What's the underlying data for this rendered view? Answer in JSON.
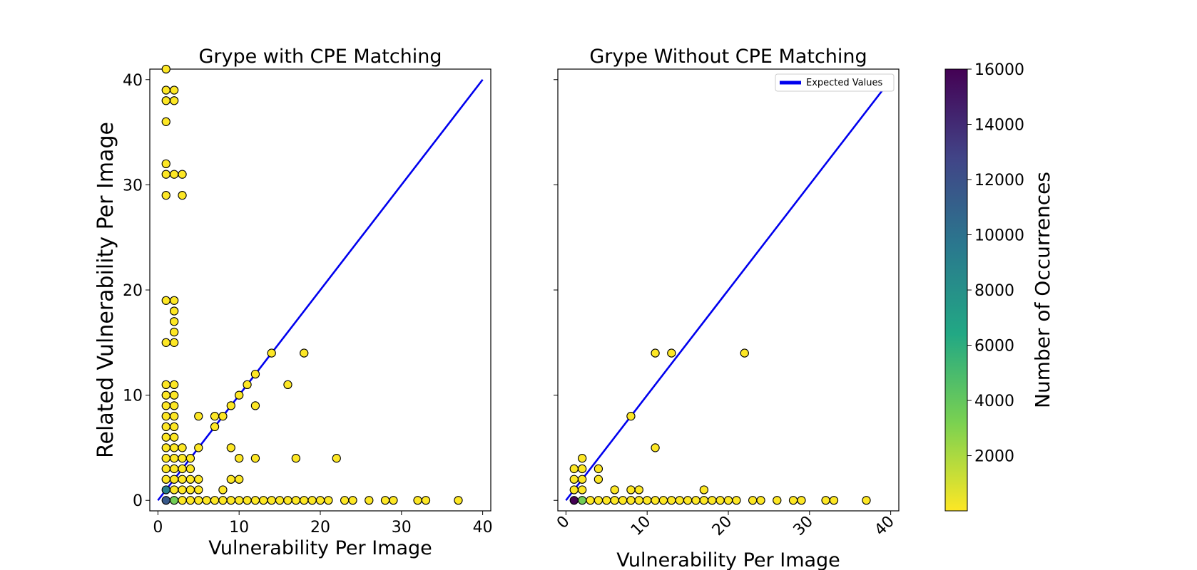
{
  "chart_data": [
    {
      "type": "scatter",
      "title": "Grype with CPE Matching",
      "xlabel": "Vulnerability Per Image",
      "ylabel": "Related Vulnerability Per Image",
      "xlim": [
        -1,
        41
      ],
      "ylim": [
        -1,
        41
      ],
      "xticks": [
        0,
        10,
        20,
        30,
        40
      ],
      "yticks": [
        0,
        10,
        20,
        30,
        40
      ],
      "reference_line": {
        "from": [
          0,
          0
        ],
        "to": [
          40,
          40
        ],
        "color": "#0000ee"
      },
      "points": [
        {
          "x": 1,
          "y": 41
        },
        {
          "x": 1,
          "y": 39
        },
        {
          "x": 2,
          "y": 39
        },
        {
          "x": 1,
          "y": 38
        },
        {
          "x": 2,
          "y": 38
        },
        {
          "x": 1,
          "y": 36
        },
        {
          "x": 1,
          "y": 32
        },
        {
          "x": 1,
          "y": 31
        },
        {
          "x": 2,
          "y": 31
        },
        {
          "x": 3,
          "y": 31
        },
        {
          "x": 1,
          "y": 29
        },
        {
          "x": 3,
          "y": 29
        },
        {
          "x": 1,
          "y": 19
        },
        {
          "x": 2,
          "y": 19
        },
        {
          "x": 2,
          "y": 18
        },
        {
          "x": 2,
          "y": 17
        },
        {
          "x": 2,
          "y": 16
        },
        {
          "x": 1,
          "y": 15
        },
        {
          "x": 2,
          "y": 15
        },
        {
          "x": 14,
          "y": 14
        },
        {
          "x": 18,
          "y": 14
        },
        {
          "x": 12,
          "y": 12
        },
        {
          "x": 1,
          "y": 11
        },
        {
          "x": 2,
          "y": 11
        },
        {
          "x": 11,
          "y": 11
        },
        {
          "x": 16,
          "y": 11
        },
        {
          "x": 1,
          "y": 10
        },
        {
          "x": 2,
          "y": 10
        },
        {
          "x": 10,
          "y": 10
        },
        {
          "x": 1,
          "y": 9
        },
        {
          "x": 2,
          "y": 9
        },
        {
          "x": 9,
          "y": 9
        },
        {
          "x": 12,
          "y": 9
        },
        {
          "x": 1,
          "y": 8
        },
        {
          "x": 2,
          "y": 8
        },
        {
          "x": 5,
          "y": 8
        },
        {
          "x": 7,
          "y": 8
        },
        {
          "x": 8,
          "y": 8
        },
        {
          "x": 1,
          "y": 7
        },
        {
          "x": 2,
          "y": 7
        },
        {
          "x": 7,
          "y": 7
        },
        {
          "x": 1,
          "y": 6
        },
        {
          "x": 2,
          "y": 6
        },
        {
          "x": 1,
          "y": 5
        },
        {
          "x": 2,
          "y": 5
        },
        {
          "x": 3,
          "y": 5
        },
        {
          "x": 5,
          "y": 5
        },
        {
          "x": 9,
          "y": 5
        },
        {
          "x": 1,
          "y": 4
        },
        {
          "x": 2,
          "y": 4
        },
        {
          "x": 3,
          "y": 4
        },
        {
          "x": 4,
          "y": 4
        },
        {
          "x": 10,
          "y": 4
        },
        {
          "x": 12,
          "y": 4
        },
        {
          "x": 17,
          "y": 4
        },
        {
          "x": 22,
          "y": 4
        },
        {
          "x": 1,
          "y": 3
        },
        {
          "x": 2,
          "y": 3
        },
        {
          "x": 3,
          "y": 3
        },
        {
          "x": 4,
          "y": 3
        },
        {
          "x": 1,
          "y": 2
        },
        {
          "x": 2,
          "y": 2
        },
        {
          "x": 3,
          "y": 2
        },
        {
          "x": 4,
          "y": 2
        },
        {
          "x": 5,
          "y": 2
        },
        {
          "x": 9,
          "y": 2
        },
        {
          "x": 10,
          "y": 2
        },
        {
          "x": 1,
          "y": 1,
          "count": 9000
        },
        {
          "x": 2,
          "y": 1
        },
        {
          "x": 3,
          "y": 1
        },
        {
          "x": 4,
          "y": 1
        },
        {
          "x": 5,
          "y": 1
        },
        {
          "x": 8,
          "y": 1
        },
        {
          "x": 1,
          "y": 0,
          "count": 11500
        },
        {
          "x": 2,
          "y": 0,
          "count": 3500
        },
        {
          "x": 3,
          "y": 0
        },
        {
          "x": 4,
          "y": 0
        },
        {
          "x": 5,
          "y": 0
        },
        {
          "x": 6,
          "y": 0
        },
        {
          "x": 7,
          "y": 0
        },
        {
          "x": 8,
          "y": 0
        },
        {
          "x": 9,
          "y": 0
        },
        {
          "x": 10,
          "y": 0
        },
        {
          "x": 11,
          "y": 0
        },
        {
          "x": 12,
          "y": 0
        },
        {
          "x": 13,
          "y": 0
        },
        {
          "x": 14,
          "y": 0
        },
        {
          "x": 15,
          "y": 0
        },
        {
          "x": 16,
          "y": 0
        },
        {
          "x": 17,
          "y": 0
        },
        {
          "x": 18,
          "y": 0
        },
        {
          "x": 19,
          "y": 0
        },
        {
          "x": 20,
          "y": 0
        },
        {
          "x": 21,
          "y": 0
        },
        {
          "x": 23,
          "y": 0
        },
        {
          "x": 24,
          "y": 0
        },
        {
          "x": 26,
          "y": 0
        },
        {
          "x": 28,
          "y": 0
        },
        {
          "x": 29,
          "y": 0
        },
        {
          "x": 32,
          "y": 0
        },
        {
          "x": 33,
          "y": 0
        },
        {
          "x": 37,
          "y": 0
        }
      ]
    },
    {
      "type": "scatter",
      "title": "Grype Without CPE Matching",
      "xlabel": "Vulnerability Per Image",
      "xlim": [
        -1,
        41
      ],
      "ylim": [
        -1,
        41
      ],
      "xticks": [
        0,
        10,
        20,
        30,
        40
      ],
      "reference_line": {
        "from": [
          0,
          0
        ],
        "to": [
          40,
          40
        ],
        "color": "#0000ee"
      },
      "legend": {
        "label": "Expected Values",
        "position": "top-right"
      },
      "points": [
        {
          "x": 11,
          "y": 14
        },
        {
          "x": 13,
          "y": 14
        },
        {
          "x": 22,
          "y": 14
        },
        {
          "x": 8,
          "y": 8
        },
        {
          "x": 11,
          "y": 5
        },
        {
          "x": 2,
          "y": 4
        },
        {
          "x": 1,
          "y": 3
        },
        {
          "x": 2,
          "y": 3
        },
        {
          "x": 4,
          "y": 3
        },
        {
          "x": 1,
          "y": 2
        },
        {
          "x": 2,
          "y": 2
        },
        {
          "x": 4,
          "y": 2
        },
        {
          "x": 1,
          "y": 1
        },
        {
          "x": 2,
          "y": 1
        },
        {
          "x": 6,
          "y": 1
        },
        {
          "x": 8,
          "y": 1
        },
        {
          "x": 9,
          "y": 1
        },
        {
          "x": 17,
          "y": 1
        },
        {
          "x": 1,
          "y": 0,
          "count": 16000
        },
        {
          "x": 2,
          "y": 0,
          "count": 3500
        },
        {
          "x": 3,
          "y": 0
        },
        {
          "x": 4,
          "y": 0
        },
        {
          "x": 5,
          "y": 0
        },
        {
          "x": 6,
          "y": 0
        },
        {
          "x": 7,
          "y": 0
        },
        {
          "x": 8,
          "y": 0
        },
        {
          "x": 9,
          "y": 0
        },
        {
          "x": 10,
          "y": 0
        },
        {
          "x": 11,
          "y": 0
        },
        {
          "x": 12,
          "y": 0
        },
        {
          "x": 13,
          "y": 0
        },
        {
          "x": 14,
          "y": 0
        },
        {
          "x": 15,
          "y": 0
        },
        {
          "x": 16,
          "y": 0
        },
        {
          "x": 17,
          "y": 0
        },
        {
          "x": 18,
          "y": 0
        },
        {
          "x": 19,
          "y": 0
        },
        {
          "x": 20,
          "y": 0
        },
        {
          "x": 21,
          "y": 0
        },
        {
          "x": 23,
          "y": 0
        },
        {
          "x": 24,
          "y": 0
        },
        {
          "x": 26,
          "y": 0
        },
        {
          "x": 28,
          "y": 0
        },
        {
          "x": 29,
          "y": 0
        },
        {
          "x": 32,
          "y": 0
        },
        {
          "x": 33,
          "y": 0
        },
        {
          "x": 37,
          "y": 0
        }
      ]
    }
  ],
  "colorbar": {
    "label": "Number of Occurrences",
    "colormap": "viridis_r",
    "range": [
      1,
      16000
    ],
    "ticks": [
      2000,
      4000,
      6000,
      8000,
      10000,
      12000,
      14000,
      16000
    ],
    "colors": [
      "#fde725",
      "#7ad151",
      "#22a884",
      "#2a788e",
      "#414487",
      "#440154"
    ]
  },
  "point_style": {
    "default_count": 1,
    "edge_color": "#000000"
  }
}
